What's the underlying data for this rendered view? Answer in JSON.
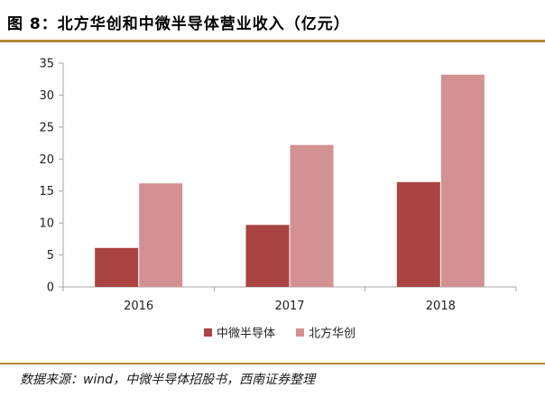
{
  "header": {
    "title": "图 8：北方华创和中微半导体营业收入（亿元）"
  },
  "footer": {
    "source": "数据来源：wind，中微半导体招股书，西南证券整理"
  },
  "colors": {
    "rule": "#b58b3b",
    "axis": "#a6a6a6",
    "text": "#222222"
  },
  "chart_data": {
    "type": "bar",
    "title": "",
    "xlabel": "",
    "ylabel": "",
    "categories": [
      "2016",
      "2017",
      "2018"
    ],
    "ylim": [
      0,
      35
    ],
    "yticks": [
      0,
      5,
      10,
      15,
      20,
      25,
      30,
      35
    ],
    "grid": false,
    "legend": "bottom",
    "series": [
      {
        "name": "中微半导体",
        "color": "#a94442",
        "values": [
          6.1,
          9.7,
          16.4
        ]
      },
      {
        "name": "北方华创",
        "color": "#d49191",
        "values": [
          16.2,
          22.2,
          33.2
        ]
      }
    ]
  }
}
